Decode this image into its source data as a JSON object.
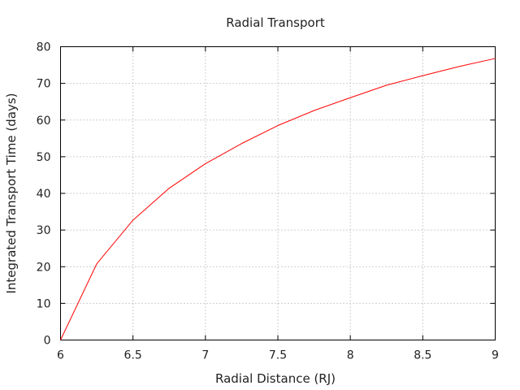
{
  "chart_data": {
    "type": "line",
    "title": "Radial Transport",
    "xlabel": "Radial Distance (RJ)",
    "ylabel": "Integrated Transport Time (days)",
    "xlim": [
      6,
      9
    ],
    "ylim": [
      0,
      80
    ],
    "xticks": [
      "6",
      "6.5",
      "7",
      "7.5",
      "8",
      "8.5",
      "9"
    ],
    "yticks": [
      "0",
      "10",
      "20",
      "30",
      "40",
      "50",
      "60",
      "70",
      "80"
    ],
    "grid": true,
    "legend": "none",
    "series": [
      {
        "color": "#ff0000",
        "x": [
          6.0,
          6.25,
          6.5,
          6.75,
          7.0,
          7.25,
          7.5,
          7.75,
          8.0,
          8.25,
          8.5,
          8.75,
          9.0
        ],
        "y": [
          0.0,
          20.8,
          32.7,
          41.4,
          48.1,
          53.6,
          58.5,
          62.6,
          66.1,
          69.5,
          72.1,
          74.6,
          76.8
        ]
      }
    ]
  }
}
